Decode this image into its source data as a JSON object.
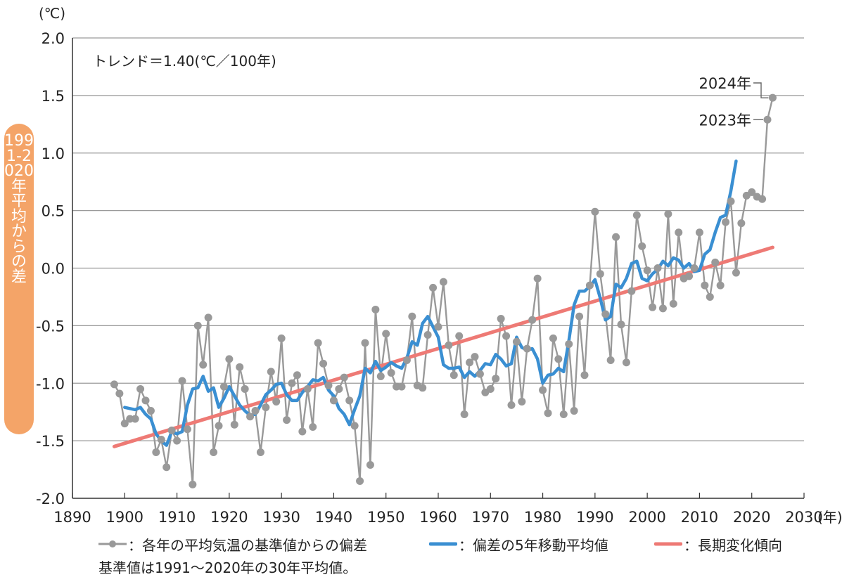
{
  "chart_data": {
    "type": "line",
    "y_unit": "(℃)",
    "x_unit": "(年)",
    "ylabel": "1991-2020年平均からの差",
    "trend_text": "トレンド＝1.40(℃／100年)",
    "xlim": [
      1890,
      2030
    ],
    "ylim": [
      -2.0,
      2.0
    ],
    "xticks": [
      1890,
      1900,
      1910,
      1920,
      1930,
      1940,
      1950,
      1960,
      1970,
      1980,
      1990,
      2000,
      2010,
      2020,
      2030
    ],
    "yticks": [
      2.0,
      1.5,
      1.0,
      0.5,
      0.0,
      -0.5,
      -1.0,
      -1.5,
      -2.0
    ],
    "ytick_labels": [
      "2.0",
      "1.5",
      "1.0",
      "0.5",
      "0.0",
      "-0.5",
      "-1.0",
      "-1.5",
      "-2.0"
    ],
    "grid": true,
    "annotations": [
      {
        "text": "2024年",
        "x": 2024,
        "y": 1.48
      },
      {
        "text": "2023年",
        "x": 2023,
        "y": 1.29
      }
    ],
    "series": [
      {
        "name": "：各年の平均気温の基準値からの偏差",
        "color": "#999999",
        "style": "line-markers",
        "x_start": 1898,
        "values": [
          -1.01,
          -1.09,
          -1.35,
          -1.31,
          -1.31,
          -1.05,
          -1.15,
          -1.24,
          -1.6,
          -1.49,
          -1.73,
          -1.41,
          -1.5,
          -0.98,
          -1.4,
          -1.88,
          -0.5,
          -0.84,
          -0.43,
          -1.6,
          -1.37,
          -1.03,
          -0.79,
          -1.36,
          -0.86,
          -1.05,
          -1.29,
          -1.24,
          -1.6,
          -1.21,
          -0.9,
          -1.16,
          -0.61,
          -1.32,
          -1.0,
          -0.93,
          -1.42,
          -1.05,
          -1.38,
          -0.65,
          -0.83,
          -1.02,
          -1.15,
          -1.05,
          -0.95,
          -1.15,
          -1.37,
          -1.85,
          -0.65,
          -1.71,
          -0.36,
          -0.94,
          -0.57,
          -0.91,
          -1.03,
          -1.03,
          -0.8,
          -0.42,
          -1.02,
          -1.04,
          -0.58,
          -0.17,
          -0.51,
          -0.12,
          -0.67,
          -0.93,
          -0.59,
          -1.27,
          -0.82,
          -0.77,
          -0.92,
          -1.08,
          -1.05,
          -0.96,
          -0.44,
          -0.59,
          -1.19,
          -0.64,
          -1.16,
          -0.7,
          -0.45,
          -0.09,
          -1.06,
          -1.26,
          -0.61,
          -0.79,
          -1.27,
          -0.66,
          -1.24,
          -0.42,
          -0.93,
          -0.15,
          0.49,
          -0.05,
          -0.4,
          -0.8,
          0.27,
          -0.49,
          -0.82,
          -0.2,
          0.46,
          0.19,
          -0.02,
          -0.34,
          0.0,
          -0.35,
          0.47,
          -0.31,
          0.31,
          -0.09,
          -0.07,
          0.0,
          0.31,
          -0.15,
          -0.25,
          0.05,
          -0.15,
          0.4,
          0.58,
          -0.04,
          0.39,
          0.63,
          0.66,
          0.62,
          0.6,
          1.29,
          1.48
        ]
      },
      {
        "name": "：偏差の5年移動平均値",
        "color": "#3a8fd2",
        "style": "line",
        "x_start": 1900,
        "values": [
          -1.21,
          -1.22,
          -1.23,
          -1.21,
          -1.27,
          -1.31,
          -1.44,
          -1.5,
          -1.54,
          -1.42,
          -1.44,
          -1.42,
          -1.19,
          -1.05,
          -1.04,
          -0.94,
          -1.07,
          -1.04,
          -1.21,
          -1.13,
          -1.03,
          -1.11,
          -1.19,
          -1.24,
          -1.28,
          -1.27,
          -1.19,
          -1.1,
          -1.06,
          -1.01,
          -1.0,
          -1.1,
          -1.15,
          -1.15,
          -1.08,
          -1.03,
          -0.97,
          -0.98,
          -0.95,
          -1.06,
          -1.11,
          -1.22,
          -1.27,
          -1.36,
          -1.23,
          -1.11,
          -0.87,
          -0.91,
          -0.81,
          -0.89,
          -0.86,
          -0.82,
          -0.85,
          -0.87,
          -0.78,
          -0.64,
          -0.67,
          -0.48,
          -0.42,
          -0.51,
          -0.6,
          -0.84,
          -0.87,
          -0.87,
          -0.86,
          -0.95,
          -0.9,
          -0.94,
          -0.89,
          -0.83,
          -0.84,
          -0.75,
          -0.79,
          -0.85,
          -0.83,
          -0.6,
          -0.69,
          -0.71,
          -0.7,
          -0.79,
          -1.0,
          -0.93,
          -0.92,
          -0.87,
          -0.9,
          -0.63,
          -0.32,
          -0.2,
          -0.2,
          -0.16,
          -0.1,
          -0.26,
          -0.45,
          -0.42,
          -0.14,
          -0.17,
          -0.09,
          0.04,
          0.06,
          -0.09,
          -0.11,
          -0.05,
          -0.01,
          0.06,
          0.02,
          0.09,
          0.07,
          0.0,
          0.04,
          -0.03,
          -0.02,
          0.12,
          0.16,
          0.31,
          0.44,
          0.46,
          0.67,
          0.93
        ]
      },
      {
        "name": "：長期変化傾向",
        "color": "#ee7a75",
        "style": "line",
        "x": [
          1898,
          2024
        ],
        "values": [
          -1.55,
          0.18
        ]
      }
    ]
  },
  "legend": {
    "note": "基準値は1991〜2020年の30年平均値。"
  }
}
